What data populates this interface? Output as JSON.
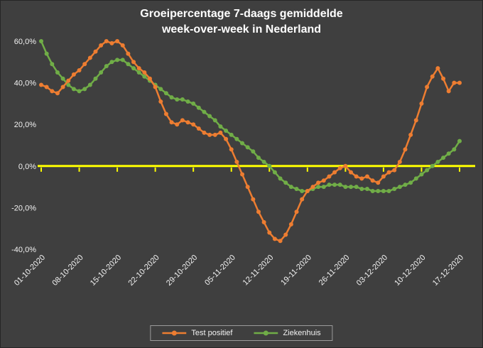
{
  "chart_data": {
    "type": "line",
    "title": "Groeipercentage 7-daags gemiddelde week-over-week in Nederland",
    "title_line1": "Groeipercentage 7-daags gemiddelde",
    "title_line2": "week-over-week in Nederland",
    "ylim": [
      -40,
      60
    ],
    "y_ticks": [
      {
        "value": 60,
        "label": "60,0%"
      },
      {
        "value": 40,
        "label": "40,0%"
      },
      {
        "value": 20,
        "label": "20,0%"
      },
      {
        "value": 0,
        "label": "0,0%"
      },
      {
        "value": -20,
        "label": "-20,0%"
      },
      {
        "value": -40,
        "label": "-40,0%"
      }
    ],
    "x_tick_labels": [
      "01-10-2020",
      "08-10-2020",
      "15-10-2020",
      "22-10-2020",
      "29-10-2020",
      "05-11-2020",
      "12-11-2020",
      "19-11-2020",
      "26-11-2020",
      "03-12-2020",
      "10-12-2020",
      "17-12-2020"
    ],
    "x_tick_indices": [
      0,
      7,
      14,
      21,
      28,
      35,
      42,
      49,
      56,
      63,
      70,
      77
    ],
    "zero_line_color": "#FFFF00",
    "colors": {
      "background": "#3F3F3F",
      "title_text": "#FFFFFF",
      "axis_text": "#F2F2F2",
      "test_positief": "#ED7D31",
      "ziekenhuis": "#70AD47"
    },
    "legend_position": "bottom-center",
    "grid": false,
    "series": [
      {
        "name": "Test positief",
        "color": "#ED7D31",
        "values": [
          39,
          38,
          36,
          35,
          38,
          41,
          44,
          46,
          49,
          52,
          55,
          58,
          60,
          59,
          60,
          58,
          54,
          50,
          47,
          45,
          42,
          38,
          31,
          25,
          21,
          20,
          22,
          21,
          20,
          18,
          16,
          15,
          15,
          16,
          13,
          8,
          2,
          -4,
          -10,
          -16,
          -22,
          -27,
          -32,
          -35,
          -36,
          -33,
          -28,
          -22,
          -16,
          -12,
          -10,
          -8,
          -7,
          -5,
          -3,
          -1,
          0,
          -3,
          -5,
          -6,
          -5,
          -7,
          -8,
          -5,
          -3,
          -2,
          2,
          8,
          15,
          22,
          30,
          38,
          43,
          47,
          42,
          36,
          40,
          40
        ]
      },
      {
        "name": "Ziekenhuis",
        "color": "#70AD47",
        "values": [
          60,
          54,
          49,
          45,
          42,
          39,
          37,
          36,
          37,
          39,
          42,
          45,
          48,
          50,
          51,
          51,
          49,
          47,
          45,
          43,
          41,
          39,
          37,
          35,
          33,
          32,
          32,
          31,
          30,
          28,
          26,
          24,
          22,
          19,
          17,
          15,
          13,
          11,
          9,
          7,
          4,
          2,
          0,
          -3,
          -6,
          -8,
          -10,
          -11,
          -12,
          -12,
          -11,
          -10,
          -10,
          -9,
          -9,
          -9,
          -10,
          -10,
          -10,
          -11,
          -11,
          -12,
          -12,
          -12,
          -12,
          -11,
          -10,
          -9,
          -8,
          -6,
          -4,
          -2,
          0,
          2,
          4,
          6,
          8,
          12
        ]
      }
    ]
  }
}
